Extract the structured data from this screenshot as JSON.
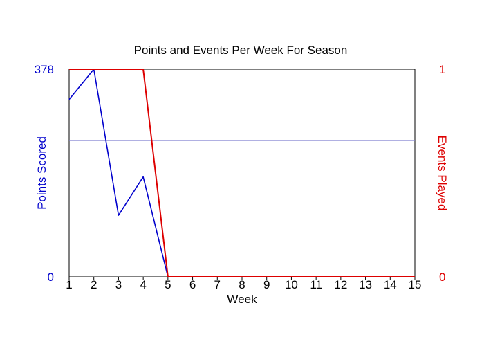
{
  "chart_data": {
    "type": "line",
    "title": "Points and Events Per Week For Season",
    "xlabel": "Week",
    "x": [
      1,
      2,
      3,
      4,
      5,
      6,
      7,
      8,
      9,
      10,
      11,
      12,
      13,
      14,
      15
    ],
    "xlim": [
      1,
      15
    ],
    "y_left": {
      "label": "Points Scored",
      "color": "#0000cc",
      "ticks": [
        "0",
        "378"
      ],
      "ylim": [
        0,
        378
      ]
    },
    "y_right": {
      "label": "Events Played",
      "color": "#dd0000",
      "ticks": [
        "0",
        "1"
      ],
      "ylim": [
        0,
        1
      ]
    },
    "series": [
      {
        "axis": "left",
        "color": "#0000cc",
        "values": [
          323,
          378,
          112,
          182,
          0,
          0,
          0,
          0,
          0,
          0,
          0,
          0,
          0,
          0,
          0
        ]
      },
      {
        "axis": "right",
        "color": "#dd0000",
        "values": [
          1,
          1,
          1,
          1,
          0,
          0,
          0,
          0,
          0,
          0,
          0,
          0,
          0,
          0,
          0
        ]
      }
    ],
    "reference_line": {
      "axis": "left",
      "value": 248,
      "color": "#8080d0"
    },
    "grid": false
  }
}
